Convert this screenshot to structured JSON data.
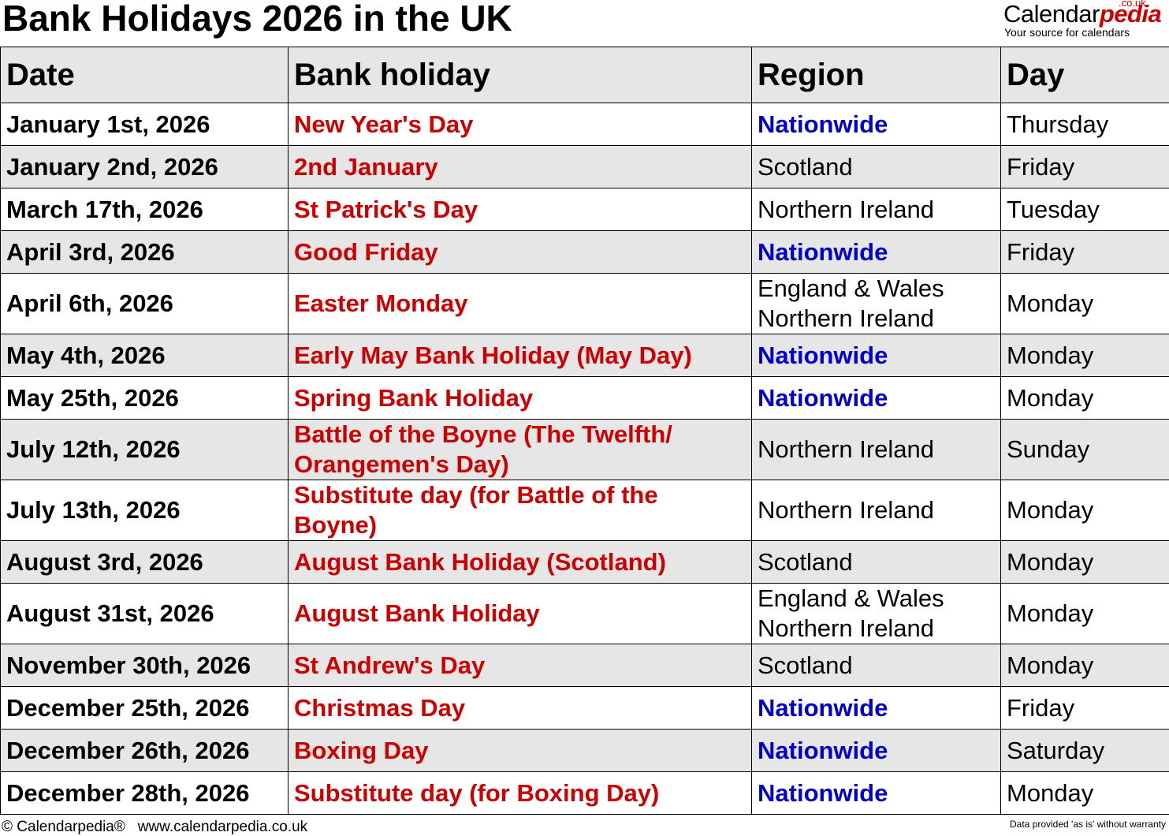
{
  "title": "Bank Holidays 2026 in the UK",
  "logo": {
    "text_main": "Calendar",
    "text_accent": "pedia",
    "domain": ".co.uk",
    "tagline": "Your source for calendars"
  },
  "colors": {
    "holiday": "#cc0000",
    "nationwide": "#0000cc",
    "shade": "#e6e6e6"
  },
  "table": {
    "headers": [
      "Date",
      "Bank holiday",
      "Region",
      "Day"
    ],
    "rows": [
      {
        "date": "January 1st, 2026",
        "holiday": "New Year's Day",
        "region": "Nationwide",
        "day": "Thursday"
      },
      {
        "date": "January 2nd, 2026",
        "holiday": "2nd January",
        "region": "Scotland",
        "day": "Friday"
      },
      {
        "date": "March 17th, 2026",
        "holiday": "St Patrick's Day",
        "region": "Northern Ireland",
        "day": "Tuesday"
      },
      {
        "date": "April 3rd, 2026",
        "holiday": "Good Friday",
        "region": "Nationwide",
        "day": "Friday"
      },
      {
        "date": "April 6th, 2026",
        "holiday": "Easter Monday",
        "region": "England & Wales\nNorthern Ireland",
        "day": "Monday"
      },
      {
        "date": "May 4th, 2026",
        "holiday": "Early May Bank Holiday (May Day)",
        "region": "Nationwide",
        "day": "Monday"
      },
      {
        "date": "May 25th, 2026",
        "holiday": "Spring Bank Holiday",
        "region": "Nationwide",
        "day": "Monday"
      },
      {
        "date": "July 12th, 2026",
        "holiday": "Battle of the Boyne (The Twelfth/ Orangemen's Day)",
        "region": "Northern Ireland",
        "day": "Sunday"
      },
      {
        "date": "July 13th, 2026",
        "holiday": "Substitute day (for Battle of the Boyne)",
        "region": "Northern Ireland",
        "day": "Monday"
      },
      {
        "date": "August 3rd, 2026",
        "holiday": "August Bank Holiday (Scotland)",
        "region": "Scotland",
        "day": "Monday"
      },
      {
        "date": "August 31st, 2026",
        "holiday": "August Bank Holiday",
        "region": "England & Wales\nNorthern Ireland",
        "day": "Monday"
      },
      {
        "date": "November 30th, 2026",
        "holiday": "St Andrew's Day",
        "region": "Scotland",
        "day": "Monday"
      },
      {
        "date": "December 25th, 2026",
        "holiday": "Christmas Day",
        "region": "Nationwide",
        "day": "Friday"
      },
      {
        "date": "December 26th, 2026",
        "holiday": "Boxing Day",
        "region": "Nationwide",
        "day": "Saturday"
      },
      {
        "date": "December 28th, 2026",
        "holiday": "Substitute day (for Boxing Day)",
        "region": "Nationwide",
        "day": "Monday"
      }
    ]
  },
  "footer": {
    "left": "© Calendarpedia®   www.calendarpedia.co.uk",
    "right": "Data provided 'as is' without warranty"
  }
}
